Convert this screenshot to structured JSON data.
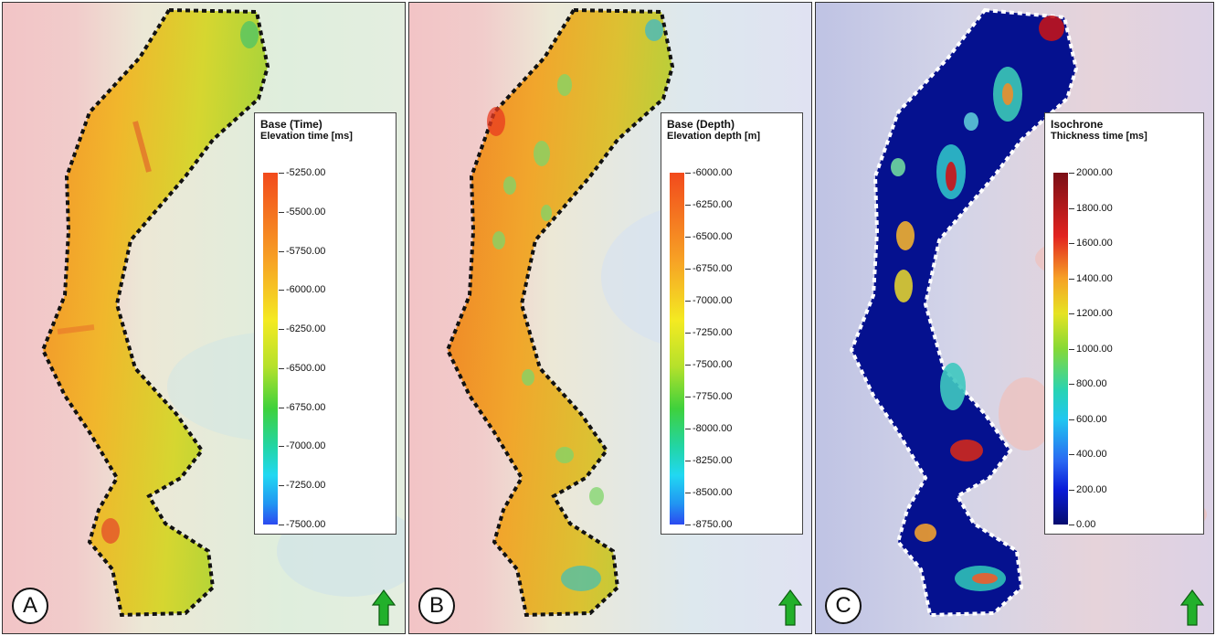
{
  "panels": [
    {
      "badge": "A",
      "legend_title": "Base (Time)",
      "legend_subtitle": "Elevation time [ms]",
      "ticks": [
        "-5250.00",
        "-5500.00",
        "-5750.00",
        "-6000.00",
        "-6250.00",
        "-6500.00",
        "-6750.00",
        "-7000.00",
        "-7250.00",
        "-7500.00"
      ],
      "range": [
        -7500,
        -5250
      ]
    },
    {
      "badge": "B",
      "legend_title": "Base (Depth)",
      "legend_subtitle": "Elevation depth [m]",
      "ticks": [
        "-6000.00",
        "-6250.00",
        "-6500.00",
        "-6750.00",
        "-7000.00",
        "-7250.00",
        "-7500.00",
        "-7750.00",
        "-8000.00",
        "-8250.00",
        "-8500.00",
        "-8750.00"
      ],
      "range": [
        -8750,
        -6000
      ]
    },
    {
      "badge": "C",
      "legend_title": "Isochrone",
      "legend_subtitle": "Thickness time [ms]",
      "ticks": [
        "2000.00",
        "1800.00",
        "1600.00",
        "1400.00",
        "1200.00",
        "1000.00",
        "800.00",
        "600.00",
        "400.00",
        "200.00",
        "0.00"
      ],
      "range": [
        0,
        2000
      ]
    }
  ],
  "colors": {
    "background_pink": "#f2c6c8",
    "background_pale": "#e8ecd8",
    "outline_dark": "#111111",
    "outline_light": "#ffffff",
    "north_arrow": "#22b02b"
  },
  "icons": {
    "north_arrow": "north-arrow-icon"
  }
}
